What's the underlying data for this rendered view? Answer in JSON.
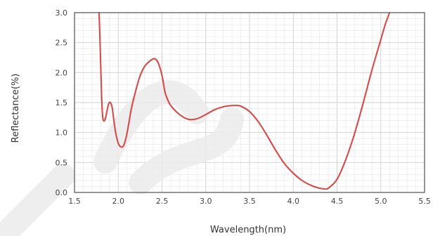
{
  "chart_data": {
    "type": "line",
    "title": "",
    "xlabel": "Wavelength(nm)",
    "ylabel": "Reflectance(%)",
    "xlim": [
      1.5,
      5.5
    ],
    "ylim": [
      0.0,
      3.0
    ],
    "x_ticks": [
      "1.5",
      "2.0",
      "2.5",
      "3.0",
      "3.5",
      "4.0",
      "4.5",
      "5.0",
      "5.5"
    ],
    "y_ticks": [
      "0.0",
      "0.5",
      "1.0",
      "1.5",
      "2.0",
      "2.5",
      "3.0"
    ],
    "grid": true,
    "series": [
      {
        "color": "#d84a4a",
        "x": [
          1.78,
          1.79,
          1.8,
          1.81,
          1.82,
          1.83,
          1.85,
          1.87,
          1.89,
          1.91,
          1.93,
          1.95,
          1.97,
          2.0,
          2.03,
          2.06,
          2.09,
          2.12,
          2.15,
          2.2,
          2.25,
          2.3,
          2.35,
          2.4,
          2.43,
          2.46,
          2.5,
          2.53,
          2.55,
          2.6,
          2.7,
          2.8,
          2.9,
          3.0,
          3.1,
          3.2,
          3.3,
          3.35,
          3.4,
          3.5,
          3.6,
          3.7,
          3.8,
          3.9,
          4.0,
          4.1,
          4.2,
          4.3,
          4.35,
          4.4,
          4.5,
          4.6,
          4.7,
          4.8,
          4.9,
          5.0,
          5.05,
          5.1
        ],
        "y": [
          3.0,
          2.6,
          2.1,
          1.6,
          1.3,
          1.2,
          1.22,
          1.35,
          1.48,
          1.5,
          1.42,
          1.2,
          1.0,
          0.82,
          0.76,
          0.78,
          0.92,
          1.15,
          1.4,
          1.7,
          1.95,
          2.1,
          2.18,
          2.23,
          2.22,
          2.15,
          1.95,
          1.7,
          1.6,
          1.45,
          1.3,
          1.22,
          1.23,
          1.3,
          1.38,
          1.43,
          1.45,
          1.45,
          1.44,
          1.35,
          1.18,
          0.95,
          0.7,
          0.48,
          0.32,
          0.2,
          0.12,
          0.07,
          0.06,
          0.07,
          0.22,
          0.55,
          0.98,
          1.5,
          2.05,
          2.55,
          2.8,
          3.0
        ]
      }
    ]
  }
}
